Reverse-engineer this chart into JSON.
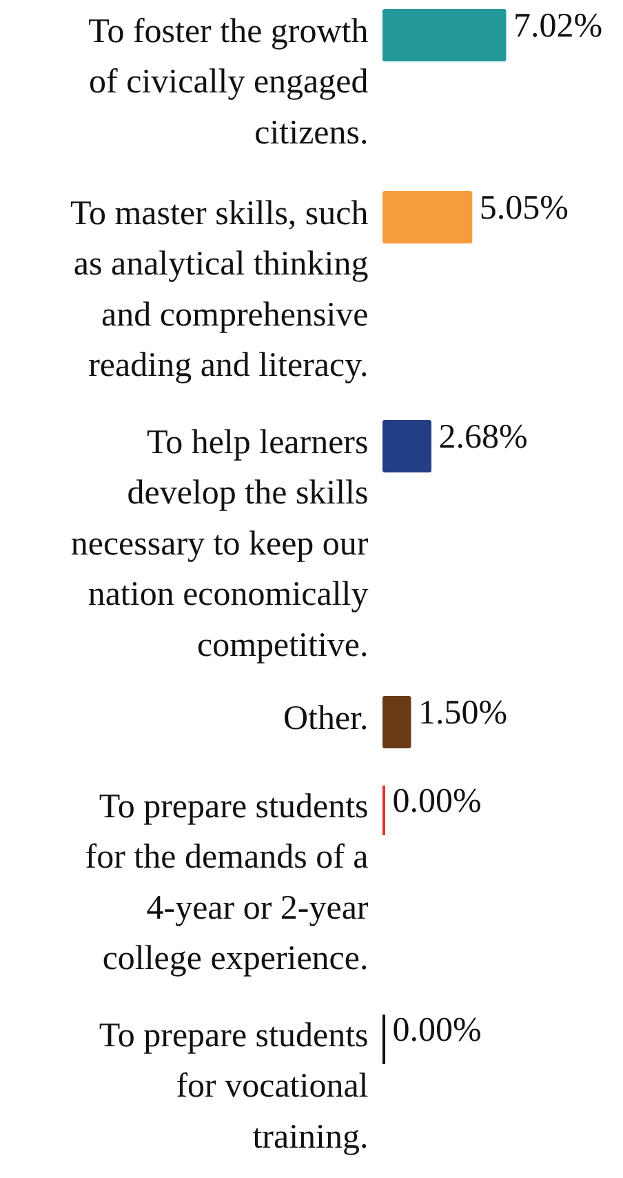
{
  "chart_data": {
    "type": "bar",
    "orientation": "horizontal",
    "categories": [
      "To foster the growth of civically engaged citizens.",
      "To master skills, such as analytical thinking and comprehensive reading and literacy.",
      "To help learners develop the skills necessary to keep our nation economically competitive.",
      "Other.",
      "To prepare students for the demands of a 4-year or 2-year college experience.",
      "To prepare students for vocational training."
    ],
    "values": [
      7.02,
      5.05,
      2.68,
      1.5,
      0.0,
      0.0
    ],
    "colors": [
      "#23999a",
      "#f59c3c",
      "#233f86",
      "#6b3a17",
      "#d9342b",
      "#111111"
    ],
    "value_labels": [
      "7.02%",
      "5.05%",
      "2.68%",
      "1.50%",
      "0.00%",
      "0.00%"
    ],
    "grid": false
  }
}
